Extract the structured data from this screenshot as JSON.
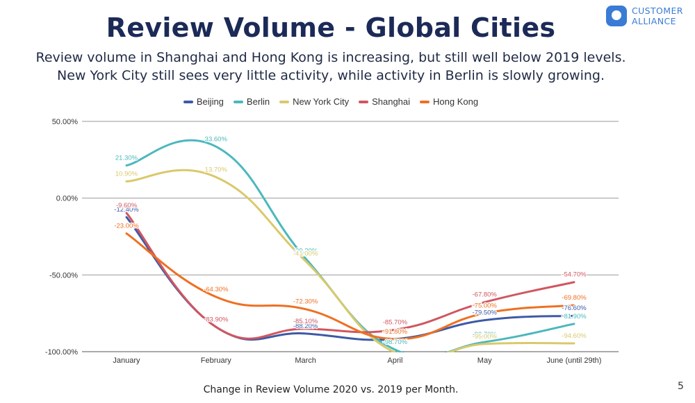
{
  "header": {
    "title": "Review Volume - Global Cities",
    "subtitle_line1": "Review volume in Shanghai and Hong Kong is increasing, but still well below 2019 levels.",
    "subtitle_line2": "New York City still sees very little activity, while activity in Berlin is slowly growing."
  },
  "logo": {
    "line1": "CUSTOMER",
    "line2": "ALLIANCE",
    "icon": "speech-bubble-icon",
    "color": "#3a7bd5"
  },
  "caption": "Change in Review Volume 2020 vs. 2019 per Month.",
  "page_number": "5",
  "chart_data": {
    "type": "line",
    "categories": [
      "January",
      "February",
      "March",
      "April",
      "May",
      "June (until 29th)"
    ],
    "ylim": [
      -100,
      50
    ],
    "yticks": [
      50,
      0,
      -50,
      -100
    ],
    "ytick_labels": [
      "50.00%",
      "0.00%",
      "-50.00%",
      "-100.00%"
    ],
    "grid": true,
    "legend_position": "top",
    "series": [
      {
        "name": "Beijing",
        "color": "#3d5aa6",
        "values": [
          -12.4,
          -83.9,
          -88.2,
          -91.8,
          -79.5,
          -76.6
        ],
        "labels": [
          "-12.40%",
          "",
          "-88.20%",
          "",
          "-79.50%",
          "-76.60%"
        ]
      },
      {
        "name": "Berlin",
        "color": "#4bb8bd",
        "values": [
          21.3,
          33.6,
          -39.2,
          -98.7,
          -93.7,
          -81.9
        ],
        "labels": [
          "21.30%",
          "33.60%",
          "-39.20%",
          "-98.70%",
          "-93.70%",
          "-81.90%"
        ]
      },
      {
        "name": "New York City",
        "color": "#d9c96b",
        "values": [
          10.9,
          13.7,
          -41.0,
          -100.5,
          -95.0,
          -94.6
        ],
        "labels": [
          "10.90%",
          "13.70%",
          "-41.00%",
          "",
          "-95.00%",
          "-94.60%"
        ]
      },
      {
        "name": "Shanghai",
        "color": "#d05660",
        "values": [
          -9.6,
          -83.9,
          -85.1,
          -85.7,
          -67.8,
          -54.7
        ],
        "labels": [
          "-9.60%",
          "-83.90%",
          "-85.10%",
          "-85.70%",
          "-67.80%",
          "-54.70%"
        ]
      },
      {
        "name": "Hong Kong",
        "color": "#ee7022",
        "values": [
          -23.0,
          -64.3,
          -72.3,
          -91.8,
          -75.0,
          -69.8
        ],
        "labels": [
          "-23.00%",
          "-64.30%",
          "-72.30%",
          "-91.80%",
          "-75.00%",
          "-69.80%"
        ]
      }
    ]
  }
}
